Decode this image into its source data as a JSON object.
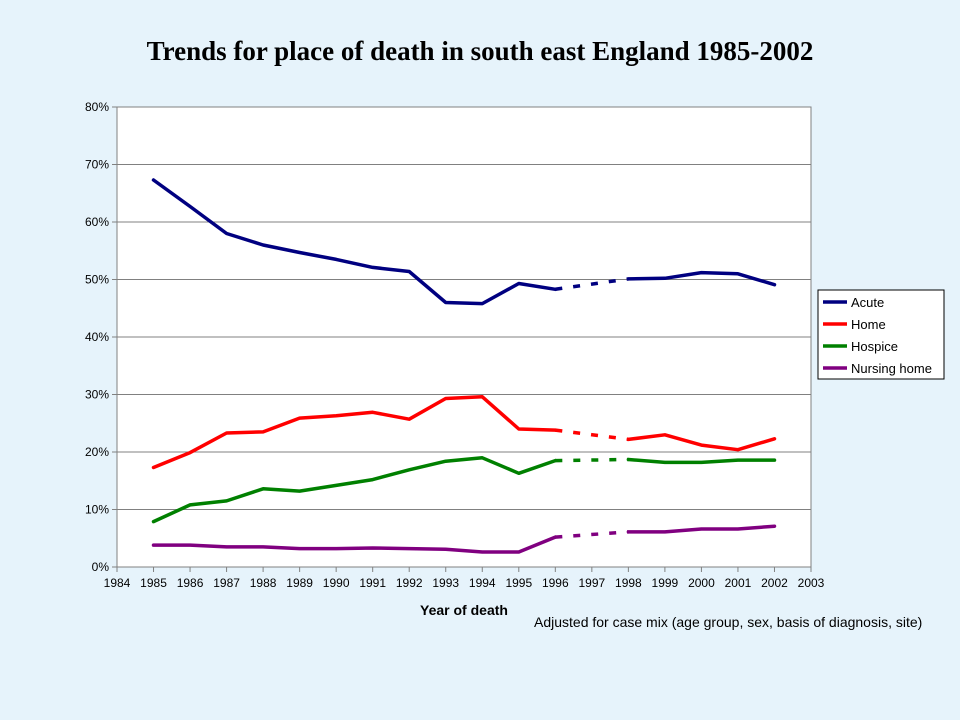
{
  "title": "Trends for place of death in south east England 1985-2002",
  "note": "Adjusted for case mix (age group, sex, basis of diagnosis, site)",
  "chart_data": {
    "type": "line",
    "xlabel": "Year of death",
    "ylabel": "",
    "x_ticks": [
      "1984",
      "1985",
      "1986",
      "1987",
      "1988",
      "1989",
      "1990",
      "1991",
      "1992",
      "1993",
      "1994",
      "1995",
      "1996",
      "1997",
      "1998",
      "1999",
      "2000",
      "2001",
      "2002",
      "2003"
    ],
    "y_ticks": [
      "0%",
      "10%",
      "20%",
      "30%",
      "40%",
      "50%",
      "60%",
      "70%",
      "80%"
    ],
    "xlim": [
      1984,
      2003
    ],
    "ylim": [
      0,
      80
    ],
    "grid": "horizontal",
    "legend_position": "right",
    "solid_range": [
      1985,
      1996
    ],
    "dashed_range": [
      1996,
      1998
    ],
    "second_solid_range": [
      1998,
      2002
    ],
    "series": [
      {
        "name": "Acute",
        "color": "#000080",
        "x": [
          1985,
          1986,
          1987,
          1988,
          1989,
          1990,
          1991,
          1992,
          1993,
          1994,
          1995,
          1996,
          1998,
          1999,
          2000,
          2001,
          2002
        ],
        "values": [
          67.3,
          62.7,
          58.0,
          56.0,
          54.7,
          53.5,
          52.1,
          51.4,
          46.0,
          45.8,
          49.3,
          48.3,
          50.1,
          50.2,
          51.2,
          51.0,
          49.1
        ]
      },
      {
        "name": "Home",
        "color": "#ff0000",
        "x": [
          1985,
          1986,
          1987,
          1988,
          1989,
          1990,
          1991,
          1992,
          1993,
          1994,
          1995,
          1996,
          1998,
          1999,
          2000,
          2001,
          2002
        ],
        "values": [
          17.3,
          19.9,
          23.3,
          23.5,
          25.9,
          26.3,
          26.9,
          25.7,
          29.3,
          29.6,
          24.0,
          23.8,
          22.2,
          23.0,
          21.2,
          20.4,
          22.3
        ]
      },
      {
        "name": "Hospice",
        "color": "#008000",
        "x": [
          1985,
          1986,
          1987,
          1988,
          1989,
          1990,
          1991,
          1992,
          1993,
          1994,
          1995,
          1996,
          1998,
          1999,
          2000,
          2001,
          2002
        ],
        "values": [
          7.9,
          10.8,
          11.5,
          13.6,
          13.2,
          14.2,
          15.2,
          16.9,
          18.4,
          19.0,
          16.3,
          18.5,
          18.7,
          18.2,
          18.2,
          18.6,
          18.6
        ]
      },
      {
        "name": "Nursing home",
        "color": "#800080",
        "x": [
          1985,
          1986,
          1987,
          1988,
          1989,
          1990,
          1991,
          1992,
          1993,
          1994,
          1995,
          1996,
          1998,
          1999,
          2000,
          2001,
          2002
        ],
        "values": [
          3.8,
          3.8,
          3.5,
          3.5,
          3.2,
          3.2,
          3.3,
          3.2,
          3.1,
          2.6,
          2.6,
          5.2,
          6.1,
          6.1,
          6.6,
          6.6,
          7.1
        ]
      }
    ]
  }
}
